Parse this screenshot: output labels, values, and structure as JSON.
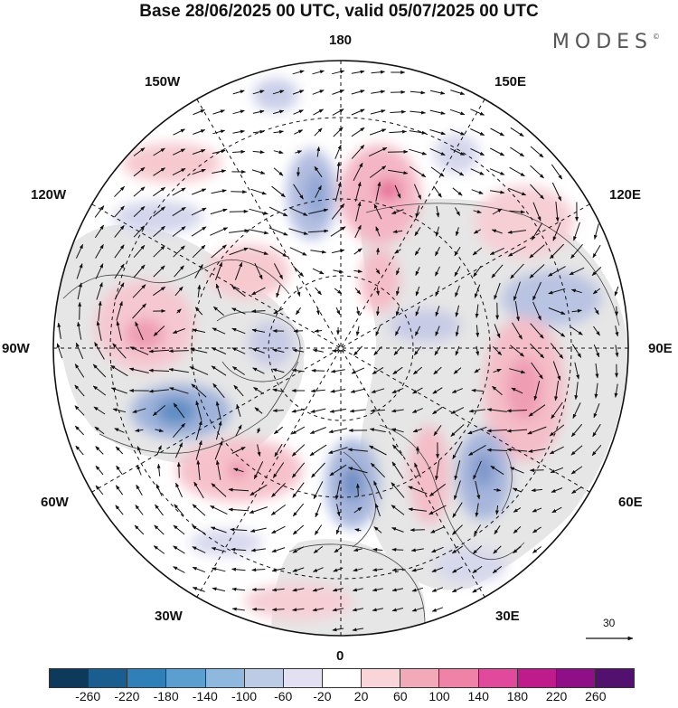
{
  "title": "Base 28/06/2025 00 UTC, valid 05/07/2025 00 UTC",
  "brand": "MODES",
  "brand_mark": "©",
  "longitude_labels": {
    "lon_180": "180",
    "lon_150e": "150E",
    "lon_120e": "120E",
    "lon_90e": "90E",
    "lon_60e": "60E",
    "lon_30e": "30E",
    "lon_0": "0",
    "lon_30w": "30W",
    "lon_60w": "60W",
    "lon_90w": "90W",
    "lon_120w": "120W",
    "lon_150w": "150W"
  },
  "reference_vector": {
    "value": "30",
    "icon": "arrow-right-icon"
  },
  "colorbar": {
    "colors": [
      "#0d3a5a",
      "#1a5e8f",
      "#2f7fb8",
      "#5a9fcf",
      "#8fb8df",
      "#bccbe6",
      "#e3e1f1",
      "#ffffff",
      "#f9d5da",
      "#f3aab8",
      "#ee82a7",
      "#e14a9c",
      "#c01b8a",
      "#8e0f86",
      "#52106f"
    ],
    "ticks": [
      "-260",
      "-220",
      "-180",
      "-140",
      "-100",
      "-60",
      "-20",
      "20",
      "60",
      "100",
      "140",
      "180",
      "220",
      "260"
    ]
  }
}
